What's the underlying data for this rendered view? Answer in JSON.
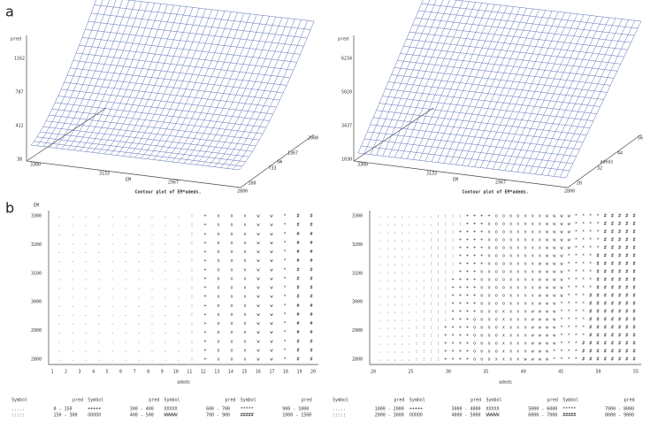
{
  "panels": {
    "a": "a",
    "b": "b"
  },
  "surface_left": {
    "zlabel": "pred",
    "zticks": [
      "1162",
      "787",
      "412",
      "38"
    ],
    "xlabel": "EM",
    "xticks": [
      "3300",
      "3133",
      "2967",
      "2800"
    ],
    "ylabel": "SW",
    "yticks": [
      "100",
      "733",
      "1367",
      "2000"
    ],
    "caption": "Contour plot of EM*adeds."
  },
  "surface_right": {
    "zlabel": "pred",
    "zticks": [
      "6234",
      "5020",
      "3437",
      "1030"
    ],
    "xlabel": "EM",
    "xticks": [
      "3300",
      "3133",
      "2967",
      "2800"
    ],
    "ylabel": "adeds",
    "yticks": [
      "20",
      "32",
      "44",
      "56"
    ],
    "caption": "Contour plot of EM*adeds."
  },
  "contour_left": {
    "ylabel": "EM",
    "yticks": [
      "3300",
      "3200",
      "3100",
      "3000",
      "2900",
      "2800"
    ],
    "xlabel": "adeds",
    "xticks": [
      "1",
      "2",
      "3",
      "4",
      "5",
      "6",
      "7",
      "8",
      "9",
      "10",
      "11",
      "12",
      "13",
      "14",
      "15",
      "16",
      "17",
      "18",
      "19",
      "20"
    ],
    "legend_header": [
      "Symbol",
      "pred",
      "Symbol",
      "pred",
      "Symbol",
      "pred",
      "Symbol",
      "pred"
    ],
    "legend": [
      [
        ".....",
        "0 - 150"
      ],
      [
        ":::::",
        "150 - 300"
      ],
      [
        "+++++",
        "300 - 400"
      ],
      [
        "OOOOO",
        "400 - 500"
      ],
      [
        "XXXXX",
        "600 - 700"
      ],
      [
        "WWWWW",
        "700 - 900"
      ],
      [
        "*****",
        "900 - 1000"
      ],
      [
        "#####",
        "1000 - 1500"
      ]
    ]
  },
  "contour_right": {
    "yticks": [
      "3300",
      "3200",
      "3100",
      "3000",
      "2900",
      "2800"
    ],
    "xlabel": "adeds",
    "xticks": [
      "20",
      "25",
      "30",
      "35",
      "40",
      "45",
      "50",
      "55"
    ],
    "legend_header": [
      "Symbol",
      "pred",
      "Symbol",
      "pred",
      "Symbol",
      "pred",
      "Symbol",
      "pred"
    ],
    "legend": [
      [
        ".....",
        "1000 - 2000"
      ],
      [
        ":::::",
        "2000 - 3000"
      ],
      [
        "+++++",
        "3000 - 4000"
      ],
      [
        "OOOOO",
        "4000 - 5000"
      ],
      [
        "XXXXX",
        "5000 - 6000"
      ],
      [
        "WWWWW",
        "6000 - 7000"
      ],
      [
        "*****",
        "7000 - 8000"
      ],
      [
        "#####",
        "8000 - 9000"
      ]
    ]
  }
}
